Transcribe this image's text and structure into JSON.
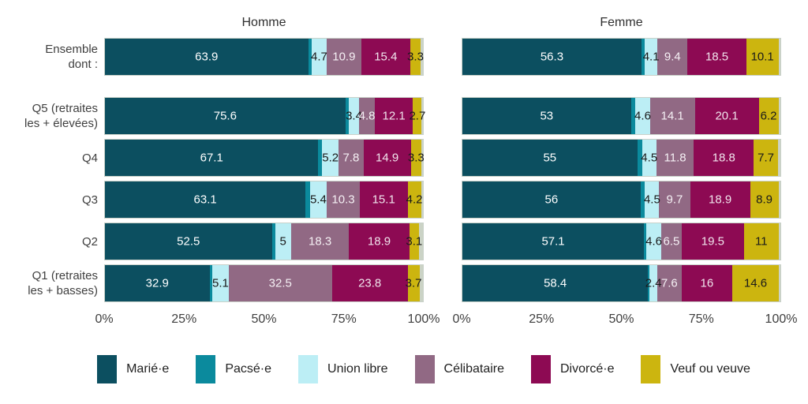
{
  "chart_data": {
    "type": "bar",
    "orientation": "horizontal-stacked",
    "unit": "%",
    "xlim": [
      0,
      100
    ],
    "x_ticks": [
      "0%",
      "25%",
      "50%",
      "75%",
      "100%"
    ],
    "grid": false,
    "legend_position": "bottom",
    "panels": [
      "Homme",
      "Femme"
    ],
    "categories": [
      [
        "Ensemble",
        "dont :"
      ],
      [
        "Q5 (retraites",
        "les + élevées)"
      ],
      [
        "Q4"
      ],
      [
        "Q3"
      ],
      [
        "Q2"
      ],
      [
        "Q1 (retraites",
        "les + basses)"
      ]
    ],
    "series": [
      {
        "name": "Marié·e",
        "color": "#0c4f60",
        "label_color": "#ffffff"
      },
      {
        "name": "Pacsé·e",
        "color": "#0b8a9d",
        "label_color": "#ffffff"
      },
      {
        "name": "Union libre",
        "color": "#bceef5",
        "label_color": "#1a1a1a"
      },
      {
        "name": "Célibataire",
        "color": "#916984",
        "label_color": "#f5f0f4"
      },
      {
        "name": "Divorcé·e",
        "color": "#8d0a53",
        "label_color": "#f0e4ec"
      },
      {
        "name": "Veuf ou veuve",
        "color": "#ccb50f",
        "label_color": "#1a1a1a"
      },
      {
        "name": "",
        "color": "#cbd3c6",
        "label_color": "#1a1a1a"
      }
    ],
    "legend_count": 6,
    "note": "segment order per bar: Marié·e, Pacsé·e, Union libre, Célibataire, Divorcé·e, Veuf ou veuve, remainder; unlabeled small segments estimated from pixels",
    "homme_rows": [
      {
        "values": [
          63.9,
          1.1,
          4.7,
          10.9,
          15.4,
          3.3,
          0.7
        ],
        "labels": [
          "63.9",
          "",
          "4.7",
          "10.9",
          "15.4",
          "3.3",
          ""
        ]
      },
      {
        "values": [
          75.6,
          1.0,
          3.4,
          4.8,
          12.1,
          2.7,
          0.4
        ],
        "labels": [
          "75.6",
          "",
          "3.4",
          "4.8",
          "12.1",
          "2.7",
          ""
        ]
      },
      {
        "values": [
          67.1,
          1.2,
          5.2,
          7.8,
          14.9,
          3.3,
          0.5
        ],
        "labels": [
          "67.1",
          "",
          "5.2",
          "7.8",
          "14.9",
          "3.3",
          ""
        ]
      },
      {
        "values": [
          63.1,
          1.3,
          5.4,
          10.3,
          15.1,
          4.2,
          0.6
        ],
        "labels": [
          "63.1",
          "",
          "5.4",
          "10.3",
          "15.1",
          "4.2",
          ""
        ]
      },
      {
        "values": [
          52.5,
          1.0,
          5.0,
          18.3,
          18.9,
          3.1,
          1.2
        ],
        "labels": [
          "52.5",
          "",
          "5",
          "18.3",
          "18.9",
          "3.1",
          ""
        ]
      },
      {
        "values": [
          32.9,
          0.9,
          5.1,
          32.5,
          23.8,
          3.7,
          1.1
        ],
        "labels": [
          "32.9",
          "",
          "5.1",
          "32.5",
          "23.8",
          "3.7",
          ""
        ]
      }
    ],
    "femme_rows": [
      {
        "values": [
          56.3,
          1.0,
          4.1,
          9.4,
          18.5,
          10.1,
          0.6
        ],
        "labels": [
          "56.3",
          "",
          "4.1",
          "9.4",
          "18.5",
          "10.1",
          ""
        ]
      },
      {
        "values": [
          53.0,
          1.4,
          4.6,
          14.1,
          20.1,
          6.2,
          0.6
        ],
        "labels": [
          "53",
          "",
          "4.6",
          "14.1",
          "20.1",
          "6.2",
          ""
        ]
      },
      {
        "values": [
          55.0,
          1.5,
          4.5,
          11.8,
          18.8,
          7.7,
          0.7
        ],
        "labels": [
          "55",
          "",
          "4.5",
          "11.8",
          "18.8",
          "7.7",
          ""
        ]
      },
      {
        "values": [
          56.0,
          1.4,
          4.5,
          9.7,
          18.9,
          8.9,
          0.6
        ],
        "labels": [
          "56",
          "",
          "4.5",
          "9.7",
          "18.9",
          "8.9",
          ""
        ]
      },
      {
        "values": [
          57.1,
          0.8,
          4.6,
          6.5,
          19.5,
          11.0,
          0.5
        ],
        "labels": [
          "57.1",
          "",
          "4.6",
          "6.5",
          "19.5",
          "11",
          ""
        ]
      },
      {
        "values": [
          58.4,
          0.5,
          2.4,
          7.6,
          16.0,
          14.6,
          0.5
        ],
        "labels": [
          "58.4",
          "",
          "2.4",
          "7.6",
          "16",
          "14.6",
          ""
        ]
      }
    ]
  }
}
